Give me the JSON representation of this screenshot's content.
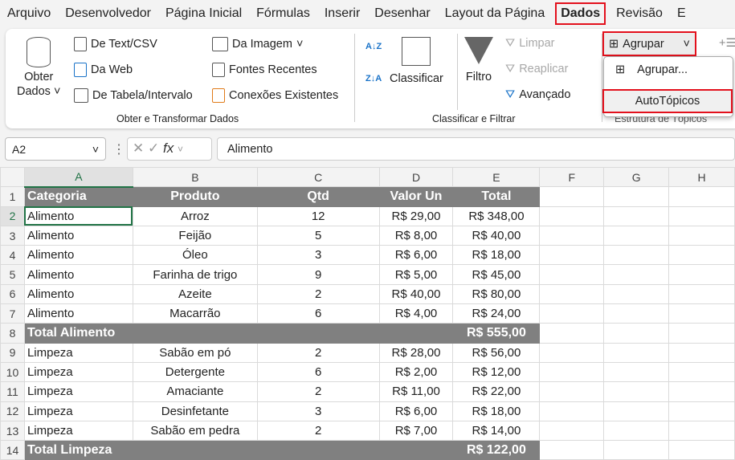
{
  "menu": {
    "items": [
      "Arquivo",
      "Desenvolvedor",
      "Página Inicial",
      "Fórmulas",
      "Inserir",
      "Desenhar",
      "Layout da Página",
      "Dados",
      "Revisão",
      "E"
    ],
    "active": "Dados"
  },
  "ribbon": {
    "get_data": {
      "obter": "Obter",
      "dados": "Dados",
      "text_csv": "De Text/CSV",
      "web": "Da Web",
      "tabela": "De Tabela/Intervalo",
      "imagem": "Da Imagem",
      "fontes": "Fontes Recentes",
      "conexoes": "Conexões Existentes",
      "group": "Obter e Transformar Dados"
    },
    "sort": {
      "classificar": "Classificar",
      "filtro": "Filtro",
      "limpar": "Limpar",
      "reaplicar": "Reaplicar",
      "avancado": "Avançado",
      "group": "Classificar e Filtrar",
      "az": "A↓Z",
      "za": "Z↓A"
    },
    "outline": {
      "agrupar": "Agrupar",
      "group": "Estrutura de Tópicos"
    },
    "dropdown": {
      "agrupar": "Agrupar...",
      "autotopicos": "AutoTópicos"
    }
  },
  "formula_bar": {
    "name_box": "A2",
    "fx": "fx",
    "value": "Alimento"
  },
  "columns": [
    "A",
    "B",
    "C",
    "D",
    "E",
    "F",
    "G",
    "H"
  ],
  "rows": [
    {
      "n": "1",
      "type": "hdr",
      "cells": [
        "Categoria",
        "Produto",
        "Qtd",
        "Valor Un",
        "Total"
      ]
    },
    {
      "n": "2",
      "cells": [
        "Alimento",
        "Arroz",
        "12",
        "R$ 29,00",
        "R$ 348,00"
      ]
    },
    {
      "n": "3",
      "cells": [
        "Alimento",
        "Feijão",
        "5",
        "R$ 8,00",
        "R$ 40,00"
      ]
    },
    {
      "n": "4",
      "cells": [
        "Alimento",
        "Óleo",
        "3",
        "R$ 6,00",
        "R$ 18,00"
      ]
    },
    {
      "n": "5",
      "cells": [
        "Alimento",
        "Farinha de trigo",
        "9",
        "R$ 5,00",
        "R$ 45,00"
      ]
    },
    {
      "n": "6",
      "cells": [
        "Alimento",
        "Azeite",
        "2",
        "R$ 40,00",
        "R$ 80,00"
      ]
    },
    {
      "n": "7",
      "cells": [
        "Alimento",
        "Macarrão",
        "6",
        "R$ 4,00",
        "R$ 24,00"
      ]
    },
    {
      "n": "8",
      "type": "total",
      "cells": [
        "Total Alimento",
        "",
        "",
        "",
        "R$ 555,00"
      ]
    },
    {
      "n": "9",
      "cells": [
        "Limpeza",
        "Sabão em pó",
        "2",
        "R$ 28,00",
        "R$ 56,00"
      ]
    },
    {
      "n": "10",
      "cells": [
        "Limpeza",
        "Detergente",
        "6",
        "R$ 2,00",
        "R$ 12,00"
      ]
    },
    {
      "n": "11",
      "cells": [
        "Limpeza",
        "Amaciante",
        "2",
        "R$ 11,00",
        "R$ 22,00"
      ]
    },
    {
      "n": "12",
      "cells": [
        "Limpeza",
        "Desinfetante",
        "3",
        "R$ 6,00",
        "R$ 18,00"
      ]
    },
    {
      "n": "13",
      "cells": [
        "Limpeza",
        "Sabão em pedra",
        "2",
        "R$ 7,00",
        "R$ 14,00"
      ]
    },
    {
      "n": "14",
      "type": "total",
      "cells": [
        "Total Limpeza",
        "",
        "",
        "",
        "R$ 122,00"
      ]
    }
  ]
}
